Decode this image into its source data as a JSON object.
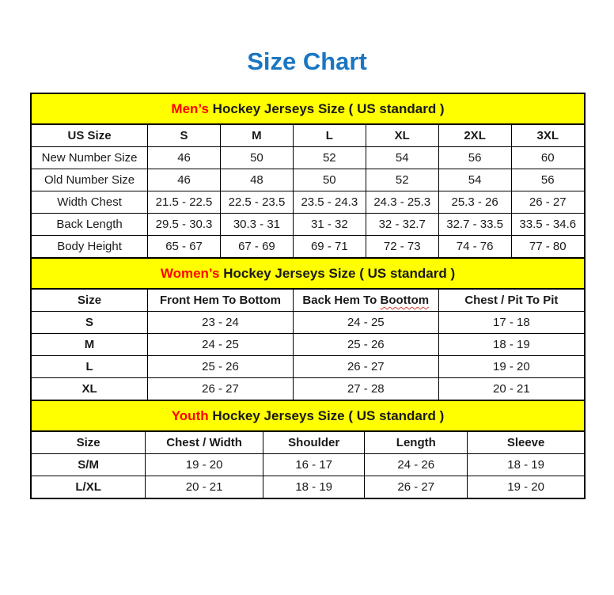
{
  "page": {
    "title": "Size Chart",
    "colors": {
      "title_blue": "#1b76c2",
      "band_yellow": "#ffff00",
      "highlight_red": "#ff0000",
      "text_black": "#1a1a1a"
    }
  },
  "tables": [
    {
      "id": "mens",
      "section_header": {
        "highlight": "Men’s",
        "rest": " Hockey Jerseys Size ( US standard )"
      },
      "columns": [
        "US Size",
        "S",
        "M",
        "L",
        "XL",
        "2XL",
        "3XL"
      ],
      "rows": [
        {
          "label": "New Number Size",
          "values": [
            "46",
            "50",
            "52",
            "54",
            "56",
            "60"
          ]
        },
        {
          "label": "Old Number Size",
          "values": [
            "46",
            "48",
            "50",
            "52",
            "54",
            "56"
          ]
        },
        {
          "label": "Width Chest",
          "values": [
            "21.5 - 22.5",
            "22.5 - 23.5",
            "23.5 - 24.3",
            "24.3 - 25.3",
            "25.3 - 26",
            "26 - 27"
          ]
        },
        {
          "label": "Back Length",
          "values": [
            "29.5 - 30.3",
            "30.3 - 31",
            "31 - 32",
            "32 - 32.7",
            "32.7 - 33.5",
            "33.5 - 34.6"
          ]
        },
        {
          "label": "Body Height",
          "values": [
            "65 - 67",
            "67 - 69",
            "69 - 71",
            "72 - 73",
            "74 - 76",
            "77 - 80"
          ]
        }
      ]
    },
    {
      "id": "womens",
      "section_header": {
        "highlight": "Women’s",
        "rest": " Hockey Jerseys Size ( US standard )"
      },
      "columns": [
        "Size",
        "Front Hem To Bottom",
        {
          "text": "Back Hem To ",
          "misspelled": "Boottom"
        },
        "Chest / Pit To Pit"
      ],
      "rows": [
        {
          "label": "S",
          "values": [
            "23 - 24",
            "24 - 25",
            "17 - 18"
          ]
        },
        {
          "label": "M",
          "values": [
            "24 - 25",
            "25 - 26",
            "18 - 19"
          ]
        },
        {
          "label": "L",
          "values": [
            "25 - 26",
            "26 - 27",
            "19 - 20"
          ]
        },
        {
          "label": "XL",
          "values": [
            "26 - 27",
            "27 - 28",
            "20 - 21"
          ]
        }
      ]
    },
    {
      "id": "youth",
      "section_header": {
        "highlight": "Youth",
        "rest": " Hockey Jerseys Size ( US standard )"
      },
      "columns": [
        "Size",
        "Chest / Width",
        "Shoulder",
        "Length",
        "Sleeve"
      ],
      "rows": [
        {
          "label": "S/M",
          "values": [
            "19 - 20",
            "16 - 17",
            "24 - 26",
            "18 - 19"
          ]
        },
        {
          "label": "L/XL",
          "values": [
            "20 - 21",
            "18 - 19",
            "26 - 27",
            "19 - 20"
          ]
        }
      ]
    }
  ]
}
